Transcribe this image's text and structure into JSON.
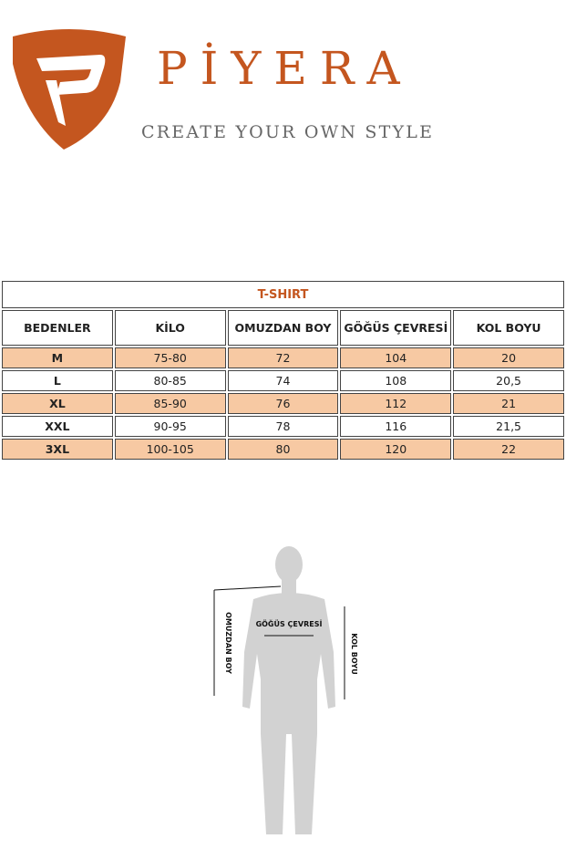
{
  "header": {
    "brand": "PİYERA",
    "slogan": "CREATE YOUR OWN STYLE"
  },
  "table": {
    "title": "T-SHIRT",
    "columns": [
      "BEDENLER",
      "KİLO",
      "OMUZDAN BOY",
      "GÖĞÜS ÇEVRESİ",
      "KOL BOYU"
    ],
    "rows": [
      [
        "M",
        "75-80",
        "72",
        "104",
        "20"
      ],
      [
        "L",
        "80-85",
        "74",
        "108",
        "20,5"
      ],
      [
        "XL",
        "85-90",
        "76",
        "112",
        "21"
      ],
      [
        "XXL",
        "90-95",
        "78",
        "116",
        "21,5"
      ],
      [
        "3XL",
        "100-105",
        "80",
        "120",
        "22"
      ]
    ]
  },
  "figure": {
    "labels": [
      "OMUZDAN BOY",
      "GÖĞÜS ÇEVRESİ",
      "KOL BOYU"
    ]
  }
}
